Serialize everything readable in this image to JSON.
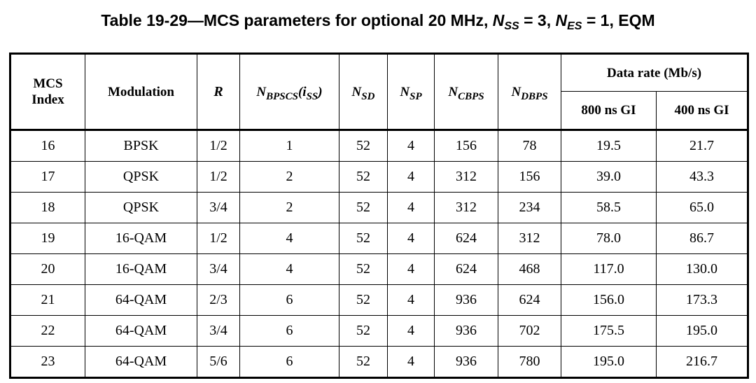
{
  "caption": {
    "prefix": "Table 19-29—MCS parameters for optional 20 MHz, ",
    "n1": "N",
    "n1_sub": "SS",
    "mid": " = 3, ",
    "n2": "N",
    "n2_sub": "ES",
    "suffix": " = 1, EQM"
  },
  "headers": {
    "mcs_line1": "MCS",
    "mcs_line2": "Index",
    "modulation": "Modulation",
    "rate": "R",
    "nbpscs_main": "N",
    "nbpscs_sub": "BPSCS",
    "nbpscs_paren_open": "(i",
    "nbpscs_paren_sub": "SS",
    "nbpscs_paren_close": ")",
    "nsd_main": "N",
    "nsd_sub": "SD",
    "nsp_main": "N",
    "nsp_sub": "SP",
    "ncbps_main": "N",
    "ncbps_sub": "CBPS",
    "ndbps_main": "N",
    "ndbps_sub": "DBPS",
    "data_rate": "Data rate (Mb/s)",
    "gi800": "800 ns GI",
    "gi400": "400 ns GI"
  },
  "rows": [
    {
      "mcs": "16",
      "mod": "BPSK",
      "r": "1/2",
      "nbpscs": "1",
      "nsd": "52",
      "nsp": "4",
      "ncbps": "156",
      "ndbps": "78",
      "gi800": "19.5",
      "gi400": "21.7"
    },
    {
      "mcs": "17",
      "mod": "QPSK",
      "r": "1/2",
      "nbpscs": "2",
      "nsd": "52",
      "nsp": "4",
      "ncbps": "312",
      "ndbps": "156",
      "gi800": "39.0",
      "gi400": "43.3"
    },
    {
      "mcs": "18",
      "mod": "QPSK",
      "r": "3/4",
      "nbpscs": "2",
      "nsd": "52",
      "nsp": "4",
      "ncbps": "312",
      "ndbps": "234",
      "gi800": "58.5",
      "gi400": "65.0"
    },
    {
      "mcs": "19",
      "mod": "16-QAM",
      "r": "1/2",
      "nbpscs": "4",
      "nsd": "52",
      "nsp": "4",
      "ncbps": "624",
      "ndbps": "312",
      "gi800": "78.0",
      "gi400": "86.7"
    },
    {
      "mcs": "20",
      "mod": "16-QAM",
      "r": "3/4",
      "nbpscs": "4",
      "nsd": "52",
      "nsp": "4",
      "ncbps": "624",
      "ndbps": "468",
      "gi800": "117.0",
      "gi400": "130.0"
    },
    {
      "mcs": "21",
      "mod": "64-QAM",
      "r": "2/3",
      "nbpscs": "6",
      "nsd": "52",
      "nsp": "4",
      "ncbps": "936",
      "ndbps": "624",
      "gi800": "156.0",
      "gi400": "173.3"
    },
    {
      "mcs": "22",
      "mod": "64-QAM",
      "r": "3/4",
      "nbpscs": "6",
      "nsd": "52",
      "nsp": "4",
      "ncbps": "936",
      "ndbps": "702",
      "gi800": "175.5",
      "gi400": "195.0"
    },
    {
      "mcs": "23",
      "mod": "64-QAM",
      "r": "5/6",
      "nbpscs": "6",
      "nsd": "52",
      "nsp": "4",
      "ncbps": "936",
      "ndbps": "780",
      "gi800": "195.0",
      "gi400": "216.7"
    }
  ]
}
